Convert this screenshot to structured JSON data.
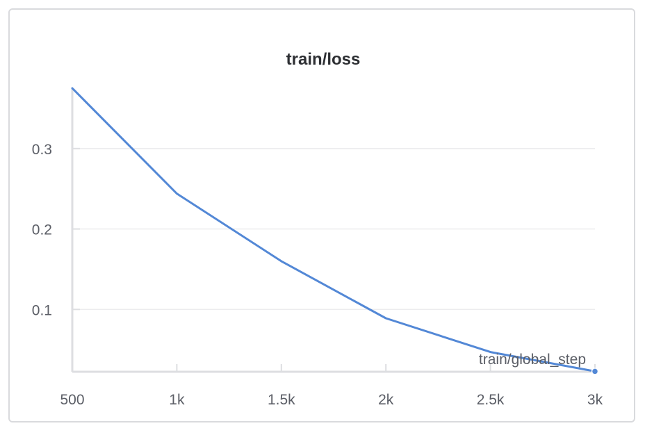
{
  "chart_data": {
    "type": "line",
    "title": "train/loss",
    "xlabel": "train/global_step",
    "ylabel": "",
    "xlim": [
      500,
      3000
    ],
    "ylim": [
      0.0225,
      0.375
    ],
    "x_ticks": [
      {
        "value": 500,
        "label": "500"
      },
      {
        "value": 1000,
        "label": "1k"
      },
      {
        "value": 1500,
        "label": "1.5k"
      },
      {
        "value": 2000,
        "label": "2k"
      },
      {
        "value": 2500,
        "label": "2.5k"
      },
      {
        "value": 3000,
        "label": "3k"
      }
    ],
    "y_ticks": [
      {
        "value": 0.1,
        "label": "0.1"
      },
      {
        "value": 0.2,
        "label": "0.2"
      },
      {
        "value": 0.3,
        "label": "0.3"
      }
    ],
    "grid": true,
    "series": [
      {
        "color": "#5388d6",
        "x": [
          500,
          1000,
          1500,
          2000,
          2500,
          3000
        ],
        "y": [
          0.375,
          0.244,
          0.16,
          0.089,
          0.047,
          0.023
        ]
      }
    ]
  }
}
